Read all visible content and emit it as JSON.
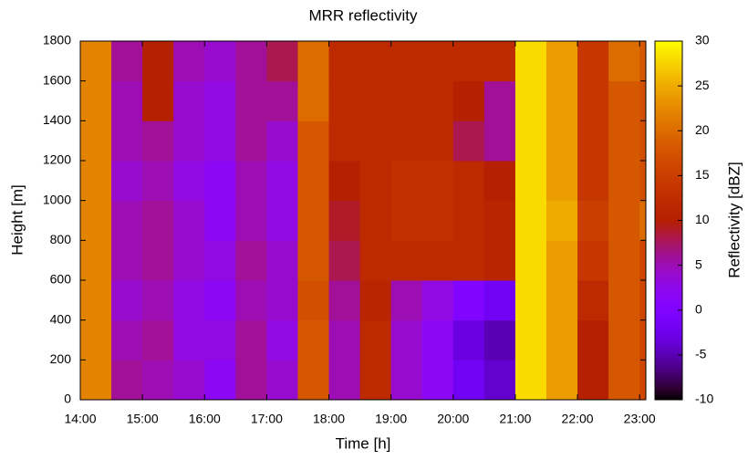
{
  "chart_data": {
    "type": "heatmap",
    "title": "MRR reflectivity",
    "x_label": "Time [h]",
    "y_label": "Height [m]",
    "colorbar_label": "Reflectivity [dBZ]",
    "colormap": "gnuplot",
    "xbins": [
      14,
      14.5,
      15,
      15.5,
      16,
      16.5,
      17,
      17.5,
      18,
      18.5,
      19,
      19.5,
      20,
      20.5,
      21,
      21.5,
      22,
      22.5,
      23,
      23.1
    ],
    "ybins": [
      0,
      200,
      400,
      600,
      800,
      1000,
      1200,
      1400,
      1600,
      1800
    ],
    "values": [
      [
        22,
        6,
        5,
        4,
        2,
        6,
        4,
        18,
        5,
        12,
        4,
        2,
        -2,
        -4,
        28,
        24,
        10,
        18,
        16
      ],
      [
        22,
        5,
        6,
        3,
        3,
        6,
        3,
        18,
        5,
        12,
        4,
        2,
        -3,
        -5,
        28,
        24,
        10,
        18,
        16
      ],
      [
        22,
        4,
        5,
        3,
        2,
        5,
        4,
        17,
        6,
        11,
        5,
        3,
        0,
        -2,
        28,
        24,
        12,
        18,
        16
      ],
      [
        22,
        5,
        6,
        4,
        3,
        6,
        4,
        18,
        8,
        12,
        12,
        12,
        12,
        11,
        28,
        24,
        14,
        18,
        16
      ],
      [
        22,
        5,
        6,
        4,
        2,
        5,
        3,
        18,
        9,
        12,
        13,
        13,
        12,
        11,
        28,
        25,
        15,
        18,
        20
      ],
      [
        22,
        4,
        5,
        3,
        2,
        5,
        3,
        18,
        10,
        12,
        13,
        13,
        12,
        10,
        28,
        24,
        14,
        18,
        17
      ],
      [
        22,
        5,
        6,
        4,
        3,
        6,
        4,
        18,
        12,
        12,
        12,
        12,
        8,
        6,
        28,
        24,
        14,
        18,
        17
      ],
      [
        22,
        5,
        10,
        4,
        3,
        6,
        6,
        20,
        12,
        12,
        12,
        12,
        10,
        6,
        28,
        24,
        14,
        18,
        17
      ],
      [
        22,
        6,
        10,
        5,
        4,
        6,
        8,
        20,
        12,
        12,
        12,
        12,
        12,
        12,
        28,
        24,
        14,
        20,
        18
      ]
    ],
    "xlim": [
      14,
      23.1
    ],
    "xticks": [
      {
        "value": 14,
        "label": "14:00"
      },
      {
        "value": 15,
        "label": "15:00"
      },
      {
        "value": 16,
        "label": "16:00"
      },
      {
        "value": 17,
        "label": "17:00"
      },
      {
        "value": 18,
        "label": "18:00"
      },
      {
        "value": 19,
        "label": "19:00"
      },
      {
        "value": 20,
        "label": "20:00"
      },
      {
        "value": 21,
        "label": "21:00"
      },
      {
        "value": 22,
        "label": "22:00"
      },
      {
        "value": 23,
        "label": "23:00"
      }
    ],
    "ylim": [
      0,
      1800
    ],
    "yticks": [
      0,
      200,
      400,
      600,
      800,
      1000,
      1200,
      1400,
      1600,
      1800
    ],
    "zlim": [
      -10,
      30
    ],
    "zticks": [
      -10,
      -5,
      0,
      5,
      10,
      15,
      20,
      25,
      30
    ]
  }
}
